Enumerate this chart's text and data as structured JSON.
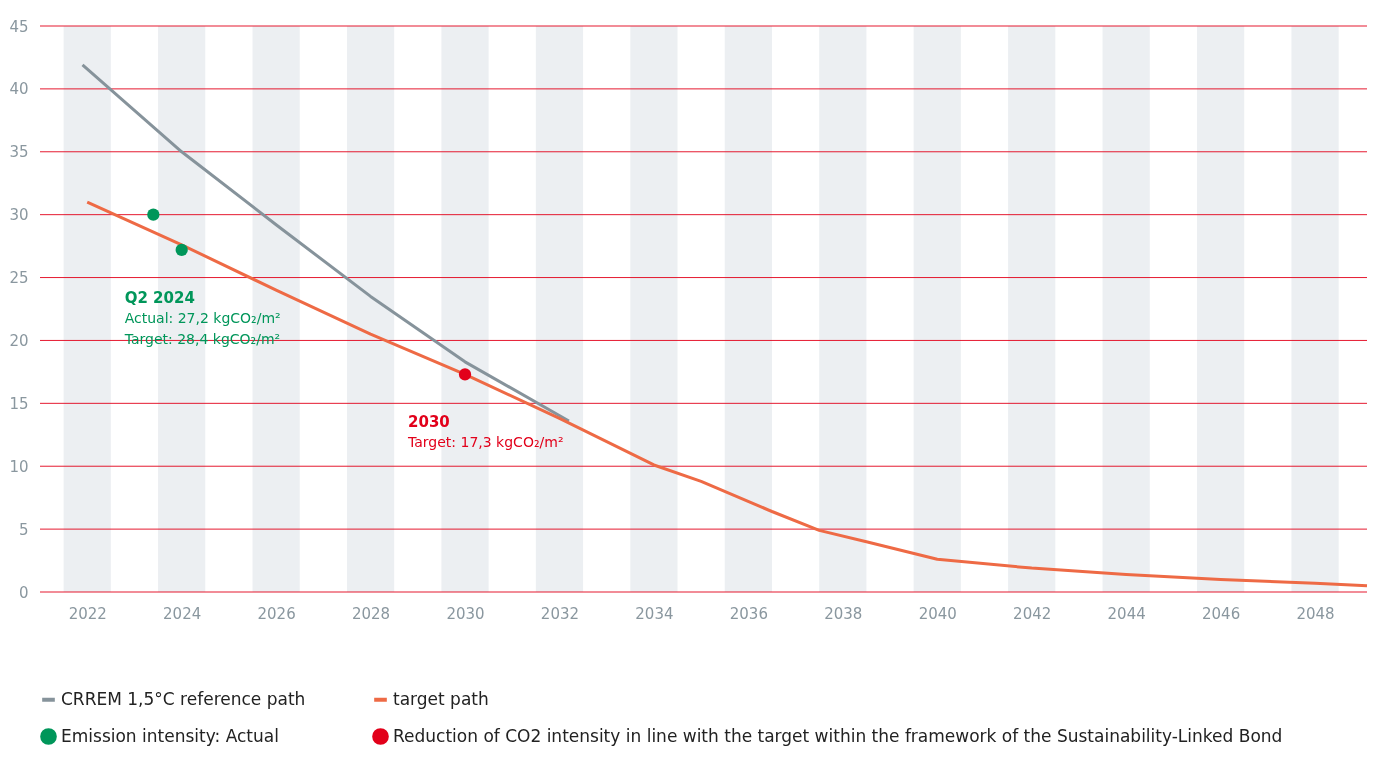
{
  "chart_data": {
    "type": "line",
    "xlim": [
      2021,
      2049.1
    ],
    "xticks": [
      2022,
      2024,
      2026,
      2028,
      2030,
      2032,
      2034,
      2036,
      2038,
      2040,
      2042,
      2044,
      2046,
      2048
    ],
    "ylim": [
      0,
      45
    ],
    "yticks": [
      0,
      5,
      10,
      15,
      20,
      25,
      30,
      35,
      40,
      45
    ],
    "grid": "y",
    "legend": "bottom left",
    "series": [
      {
        "name": "CRREM 1,5°C reference path",
        "color": "#86939b",
        "x": [
          2021.9,
          2024,
          2026,
          2028,
          2030,
          2032.2
        ],
        "values": [
          41.9,
          35,
          29.2,
          23.5,
          18.3,
          13.6
        ]
      },
      {
        "name": "target path",
        "color": "#ee6a45",
        "x": [
          2022,
          2024,
          2026,
          2028,
          2030,
          2032,
          2034,
          2035,
          2036.5,
          2037.5,
          2038.5,
          2040,
          2042,
          2044,
          2046,
          2048,
          2049.1
        ],
        "values": [
          31,
          27.6,
          24,
          20.5,
          17.3,
          13.8,
          10.1,
          8.8,
          6.4,
          4.9,
          4.0,
          2.6,
          1.9,
          1.4,
          1.0,
          0.7,
          0.5
        ]
      },
      {
        "name": "Emission intensity: Actual",
        "type": "scatter",
        "color": "#00965a",
        "x": [
          2023.4,
          2024
        ],
        "values": [
          30.0,
          27.2
        ]
      },
      {
        "name": "Reduction of CO2 intensity in line with the target within the framework of the Sustainability-Linked Bond",
        "type": "scatter",
        "color": "#e2001a",
        "x": [
          2030
        ],
        "values": [
          17.3
        ]
      }
    ],
    "bands": [
      {
        "axis": "x",
        "from": 2021.5,
        "to": 2022.5,
        "color": "#eceff2"
      },
      {
        "axis": "x",
        "from": 2023.5,
        "to": 2024.5,
        "color": "#eceff2"
      },
      {
        "axis": "x",
        "from": 2025.5,
        "to": 2026.5,
        "color": "#eceff2"
      },
      {
        "axis": "x",
        "from": 2027.5,
        "to": 2028.5,
        "color": "#eceff2"
      },
      {
        "axis": "x",
        "from": 2029.5,
        "to": 2030.5,
        "color": "#eceff2"
      },
      {
        "axis": "x",
        "from": 2031.5,
        "to": 2032.5,
        "color": "#eceff2"
      },
      {
        "axis": "x",
        "from": 2033.5,
        "to": 2034.5,
        "color": "#eceff2"
      },
      {
        "axis": "x",
        "from": 2035.5,
        "to": 2036.5,
        "color": "#eceff2"
      },
      {
        "axis": "x",
        "from": 2037.5,
        "to": 2038.5,
        "color": "#eceff2"
      },
      {
        "axis": "x",
        "from": 2039.5,
        "to": 2040.5,
        "color": "#eceff2"
      },
      {
        "axis": "x",
        "from": 2041.5,
        "to": 2042.5,
        "color": "#eceff2"
      },
      {
        "axis": "x",
        "from": 2043.5,
        "to": 2044.5,
        "color": "#eceff2"
      },
      {
        "axis": "x",
        "from": 2045.5,
        "to": 2046.5,
        "color": "#eceff2"
      },
      {
        "axis": "x",
        "from": 2047.5,
        "to": 2048.5,
        "color": "#eceff2"
      }
    ],
    "annotations": [
      {
        "text": "Q2 2024\nActual: 27,2 kgCO₂/m²\nTarget: 28,4 kgCO₂/m²",
        "x": 2024,
        "y": 27.2
      },
      {
        "text": "2030\nTarget: 17,3 kgCO₂/m²",
        "x": 2030,
        "y": 17.3
      }
    ]
  }
}
